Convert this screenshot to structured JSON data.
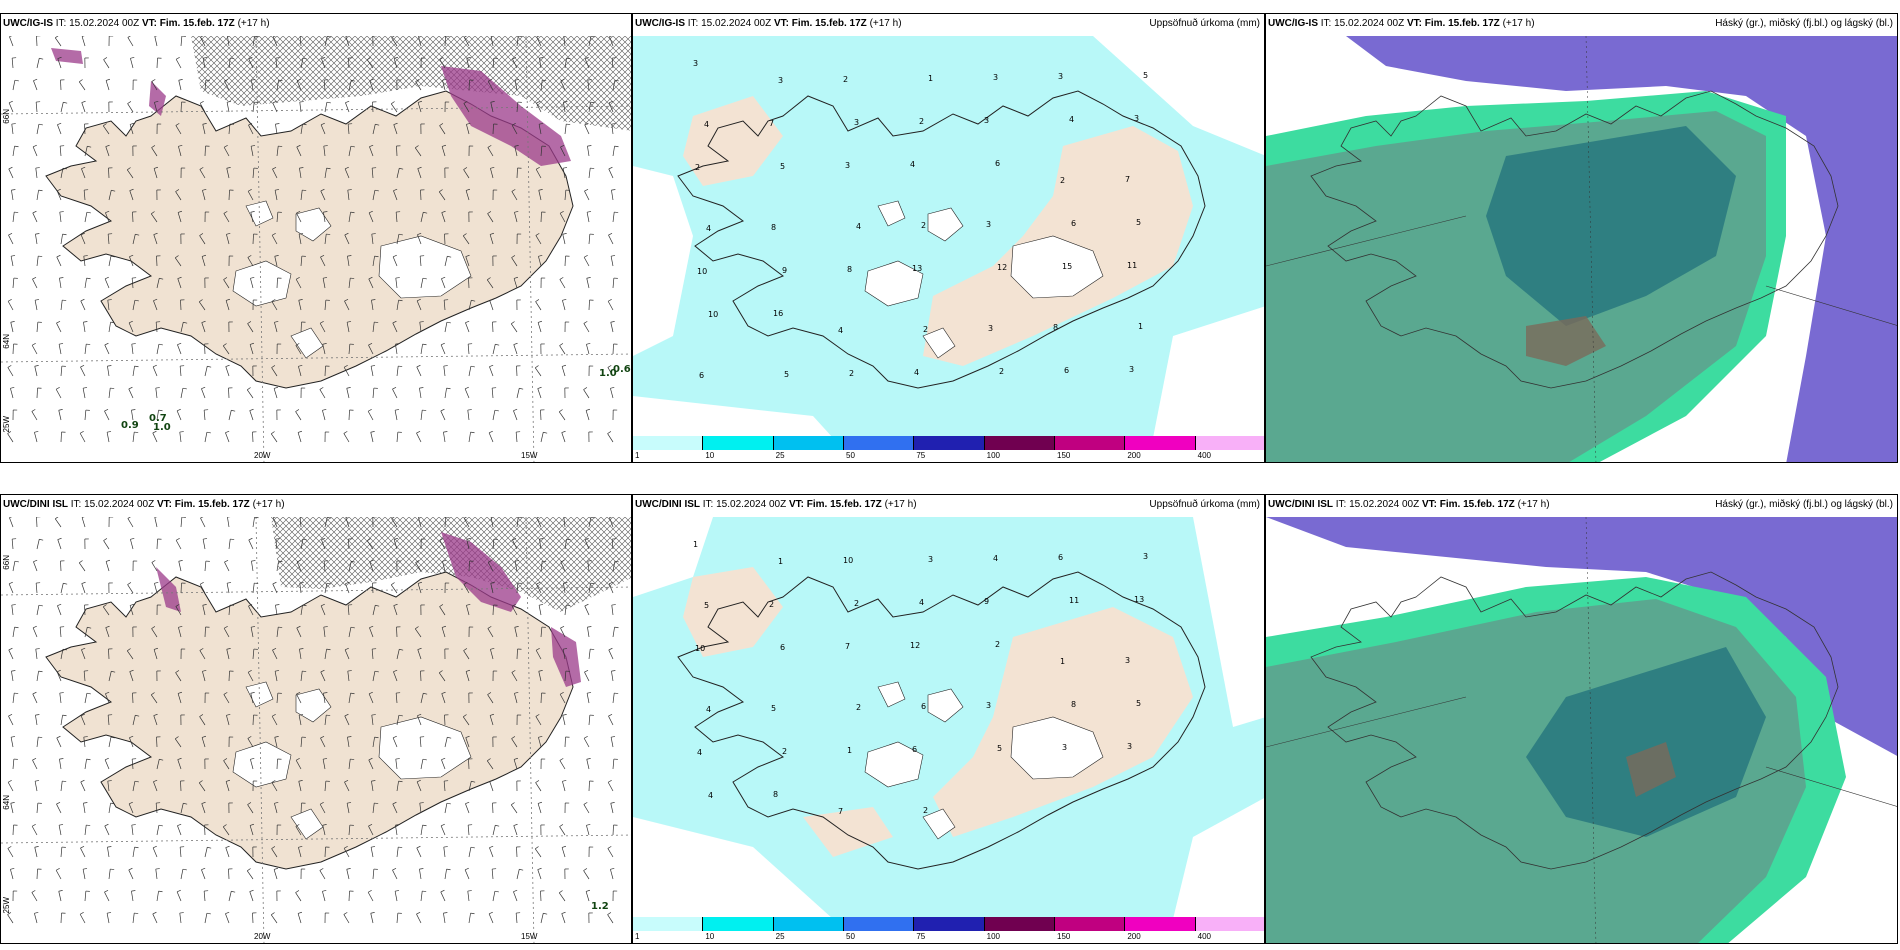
{
  "rows": [
    {
      "model": "UWC/IG-IS",
      "init": "IT: 15.02.2024 00Z",
      "valid": "VT: Fim. 15.feb. 17Z",
      "lead": "(+17 h)",
      "wind_values": [
        "0.9",
        "0.7",
        "1.0",
        "1.0",
        "0.6"
      ],
      "precip_numbers": [
        "3",
        "3",
        "2",
        "1",
        "3",
        "3",
        "5",
        "4",
        "7",
        "3",
        "2",
        "3",
        "4",
        "3",
        "2",
        "5",
        "3",
        "4",
        "6",
        "2",
        "7",
        "4",
        "8",
        "4",
        "2",
        "3",
        "6",
        "5",
        "10",
        "9",
        "8",
        "13",
        "12",
        "15",
        "11",
        "10",
        "16",
        "4",
        "2",
        "3",
        "8",
        "1",
        "6",
        "5",
        "2",
        "4",
        "2",
        "6",
        "3"
      ]
    },
    {
      "model": "UWC/DINI ISL",
      "init": "IT: 15.02.2024 00Z",
      "valid": "VT: Fim. 15.feb. 17Z",
      "lead": "(+17 h)",
      "wind_values": [
        "1.2"
      ],
      "precip_numbers": [
        "1",
        "1",
        "10",
        "3",
        "4",
        "6",
        "3",
        "5",
        "2",
        "2",
        "4",
        "9",
        "11",
        "13",
        "10",
        "6",
        "7",
        "12",
        "2",
        "1",
        "3",
        "4",
        "5",
        "2",
        "6",
        "3",
        "8",
        "5",
        "4",
        "2",
        "1",
        "6",
        "5",
        "3",
        "3",
        "4",
        "8",
        "7",
        "2"
      ]
    }
  ],
  "precip_title": "Uppsöfnuð úrkoma (mm)",
  "cloud_title": "Háský (gr.), miðský (fj.bl.) og lágský (bl.)",
  "legend": {
    "ticks": [
      "1",
      "10",
      "25",
      "50",
      "75",
      "100",
      "150",
      "200",
      "400"
    ],
    "colors": [
      "#c8fcfc",
      "#00f0f0",
      "#00c0f0",
      "#3070f0",
      "#2020b0",
      "#700050",
      "#c00080",
      "#f000c0",
      "#f8b0f8"
    ]
  },
  "axis_labels": {
    "lat_66": "66N",
    "lat_64": "64N",
    "lon_25": "25W",
    "lon_20": "20W",
    "lon_15": "15W"
  },
  "colors": {
    "land": "#f0e2d2",
    "sea": "#ffffff",
    "precip_light": "#b8f8f8",
    "cloud_high": "#6a5acd",
    "cloud_mid": "#2e9a80",
    "cloud_low": "#5aa890",
    "snow": "#c050c0"
  }
}
